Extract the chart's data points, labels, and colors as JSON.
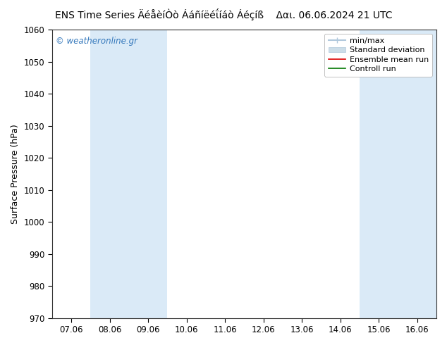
{
  "title": "ENS Time Series ÄéåèíÒò Ááñíëéΐíáò Áéçíß",
  "date_label": "Δαι. 06.06.2024 21 UTC",
  "ylabel": "Surface Pressure (hPa)",
  "ylim": [
    970,
    1060
  ],
  "yticks": [
    970,
    980,
    990,
    1000,
    1010,
    1020,
    1030,
    1040,
    1050,
    1060
  ],
  "x_labels": [
    "07.06",
    "08.06",
    "09.06",
    "10.06",
    "11.06",
    "12.06",
    "13.06",
    "14.06",
    "15.06",
    "16.06"
  ],
  "n_steps": 10,
  "shade_color": "#daeaf7",
  "bg_color": "#ffffff",
  "mean_color": "#dd0000",
  "control_color": "#007700",
  "min_max_color": "#b0c8dc",
  "std_color": "#ccdde8",
  "watermark_text": "© weatheronline.gr",
  "watermark_color": "#3377bb",
  "title_fontsize": 10,
  "axis_fontsize": 9,
  "tick_fontsize": 8.5,
  "legend_fontsize": 8
}
